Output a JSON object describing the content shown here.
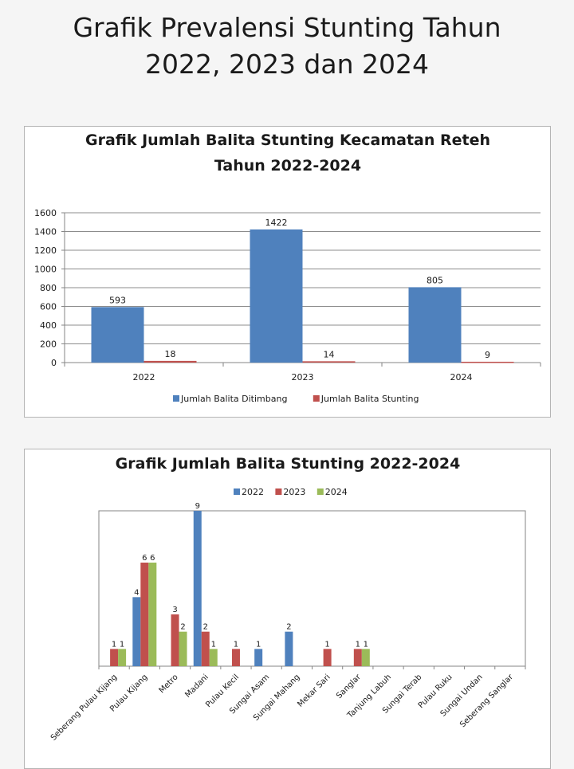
{
  "page": {
    "title_line1": "Grafik Prevalensi Stunting Tahun",
    "title_line2": "2022, 2023 dan 2024"
  },
  "chart_data": [
    {
      "type": "bar",
      "title_line1": "Grafik Jumlah Balita Stunting Kecamatan Reteh",
      "title_line2": "Tahun 2022-2024",
      "categories": [
        "2022",
        "2023",
        "2024"
      ],
      "series": [
        {
          "name": "Jumlah Balita Ditimbang",
          "color": "#4f81bd",
          "values": [
            593,
            1422,
            805
          ]
        },
        {
          "name": "Jumlah Balita Stunting",
          "color": "#c0504d",
          "values": [
            18,
            14,
            9
          ]
        }
      ],
      "ylim": [
        0,
        1600
      ],
      "yticks": [
        0,
        200,
        400,
        600,
        800,
        1000,
        1200,
        1400,
        1600
      ],
      "grid": true,
      "legend": "bottom"
    },
    {
      "type": "bar",
      "title": "Grafik Jumlah Balita Stunting 2022-2024",
      "categories": [
        "Seberang Pulau Kijang",
        "Pulau Kijang",
        "Metro",
        "Madani",
        "Pulau Kecil",
        "Sungai Asam",
        "Sungai Mahang",
        "Mekar Sari",
        "Sanglar",
        "Tanjung Labuh",
        "Sungai Terab",
        "Pulau Ruku",
        "Sungai Undan",
        "Seberang Sanglar"
      ],
      "series": [
        {
          "name": "2022",
          "color": "#4f81bd",
          "values": [
            0,
            4,
            0,
            9,
            0,
            1,
            2,
            0,
            0,
            0,
            0,
            0,
            0,
            0
          ]
        },
        {
          "name": "2023",
          "color": "#c0504d",
          "values": [
            1,
            6,
            3,
            2,
            1,
            0,
            0,
            1,
            1,
            0,
            0,
            0,
            0,
            0
          ]
        },
        {
          "name": "2024",
          "color": "#9bbb59",
          "values": [
            1,
            6,
            2,
            1,
            0,
            0,
            0,
            0,
            1,
            0,
            0,
            0,
            0,
            0
          ]
        }
      ],
      "ylim": [
        0,
        9
      ],
      "grid": false,
      "legend": "top"
    }
  ]
}
